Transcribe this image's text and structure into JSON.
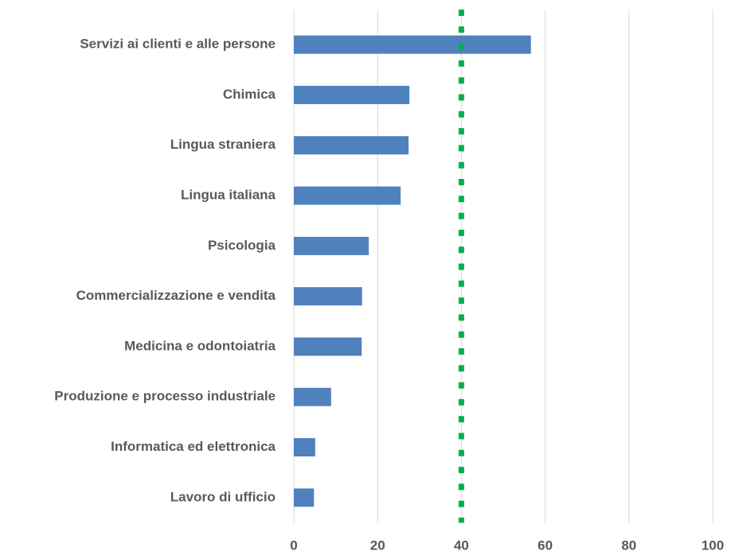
{
  "chart_data": {
    "type": "hbar",
    "categories": [
      "Servizi ai clienti e alle persone",
      "Chimica",
      "Lingua straniera",
      "Lingua italiana",
      "Psicologia",
      "Commercializzazione e vendita",
      "Medicina e odontoiatria",
      "Produzione e processo industriale",
      "Informatica ed elettronica",
      "Lavoro di ufficio"
    ],
    "values": [
      56.6,
      27.6,
      27.4,
      25.5,
      17.9,
      16.3,
      16.2,
      8.9,
      5.1,
      4.8
    ],
    "color": "#4f81bd",
    "xlim": [
      0,
      100
    ],
    "xticks": [
      0,
      20,
      40,
      60,
      80,
      100
    ],
    "grid": true,
    "reference_line": {
      "value": 40,
      "color": "#00b050"
    }
  }
}
